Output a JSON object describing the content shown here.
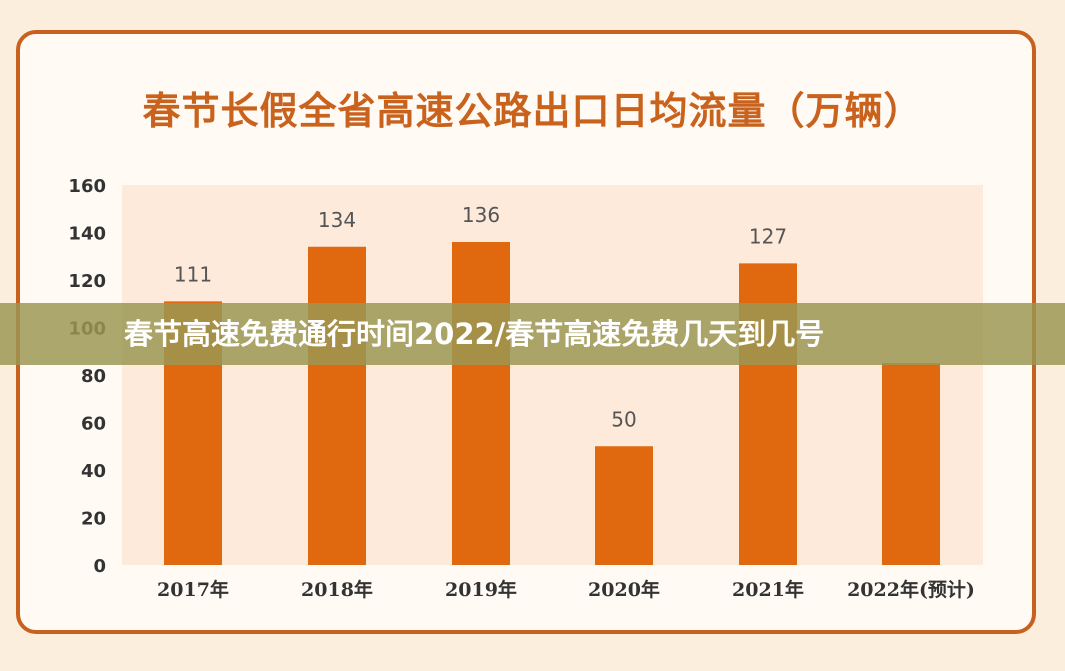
{
  "banner": {
    "text": "春节高速免费通行时间2022/春节高速免费几天到几号"
  },
  "colors": {
    "bar": "#e0690f",
    "plot_bg": "#fdeadb",
    "border": "#c8601f",
    "title": "#c8621c"
  },
  "chart_data": {
    "type": "bar",
    "title": "春节长假全省高速公路出口日均流量（万辆）",
    "xlabel": "",
    "ylabel": "",
    "categories": [
      "2017年",
      "2018年",
      "2019年",
      "2020年",
      "2021年",
      "2022年(预计)"
    ],
    "values": [
      111,
      134,
      136,
      50,
      127,
      85
    ],
    "value_labels": [
      "111",
      "134",
      "136",
      "50",
      "127",
      ""
    ],
    "ylim": [
      0,
      160
    ],
    "yticks": [
      0,
      20,
      40,
      60,
      80,
      100,
      120,
      140,
      160
    ],
    "grid": false,
    "legend": "none"
  }
}
